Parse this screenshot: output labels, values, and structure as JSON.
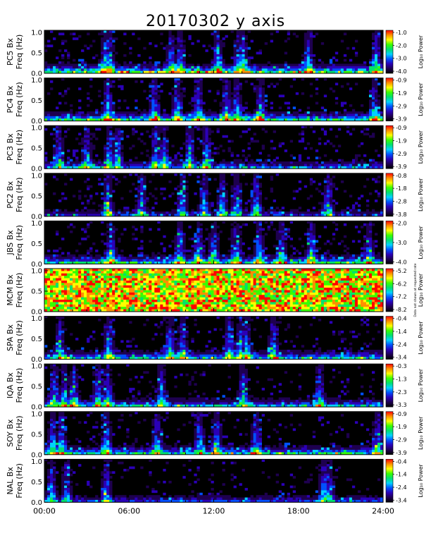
{
  "title": "20170302 y axis",
  "chart_data": {
    "type": "heatmap",
    "title": "20170302 y axis",
    "x_ticks": [
      "00:00",
      "06:00",
      "12:00",
      "18:00",
      "24:00"
    ],
    "xlim": [
      "00:00",
      "24:00"
    ],
    "ylabel_freq": "Freq (Hz)",
    "y_ticks": [
      "0.0",
      "0.5",
      "1.0"
    ],
    "ylim": [
      0.0,
      1.0
    ],
    "colorbar_label": "Log₁₀ Power",
    "colormap": [
      "#000000",
      "#1e0050",
      "#2b00b8",
      "#0050ff",
      "#00d2ff",
      "#00e070",
      "#38ff00",
      "#ffff00",
      "#ff9000",
      "#ff0000"
    ],
    "panels": [
      {
        "station": "PC5 Bx",
        "cbar_ticks": [
          "-1.0",
          "-2.0",
          "-3.0",
          "-4.0"
        ],
        "activity": 0.55,
        "baseline": 0.9,
        "bursts": [
          4.3,
          4.6,
          9.0,
          9.6,
          12.3,
          13.8,
          14.1,
          18.7,
          23.5
        ]
      },
      {
        "station": "PC4 Bx",
        "cbar_ticks": [
          "-0.9",
          "-1.9",
          "-2.9",
          "-3.9"
        ],
        "activity": 0.5,
        "baseline": 0.8,
        "bursts": [
          4.5,
          7.8,
          9.4,
          10.9,
          12.9,
          13.6,
          15.3,
          23.4
        ]
      },
      {
        "station": "PC3 Bx",
        "cbar_ticks": [
          "-0.9",
          "-1.9",
          "-2.9",
          "-3.9"
        ],
        "activity": 0.75,
        "baseline": 0.55,
        "bursts": [
          1.0,
          3.0,
          4.6,
          5.2,
          7.9,
          8.5,
          10.3,
          11.5
        ]
      },
      {
        "station": "PC2 Bx",
        "cbar_ticks": [
          "-0.8",
          "-1.8",
          "-2.8",
          "-3.8"
        ],
        "activity": 0.65,
        "baseline": 0.4,
        "bursts": [
          4.5,
          6.9,
          9.8,
          11.3,
          12.6,
          13.6,
          15.0,
          20.1
        ]
      },
      {
        "station": "JBS Bx",
        "cbar_ticks": [
          "-2.0",
          "-3.0",
          "-4.0"
        ],
        "activity": 0.7,
        "baseline": 0.75,
        "bursts": [
          4.7,
          9.6,
          10.9,
          12.0,
          13.6,
          15.2,
          16.8,
          18.9,
          23.0
        ]
      },
      {
        "station": "MCM Bx",
        "cbar_ticks": [
          "-5.2",
          "-6.2",
          "-7.2",
          "-8.2"
        ],
        "activity": 1.0,
        "baseline": 0.0,
        "bursts": [],
        "note": "Data not shown at requested rate"
      },
      {
        "station": "SPA Bx",
        "cbar_ticks": [
          "-0.4",
          "-1.4",
          "-2.4",
          "-3.4"
        ],
        "activity": 0.55,
        "baseline": 0.7,
        "bursts": [
          1.1,
          4.6,
          8.9,
          9.8,
          13.1,
          13.9,
          14.3,
          16.2
        ]
      },
      {
        "station": "IQA Bx",
        "cbar_ticks": [
          "-0.3",
          "-1.3",
          "-2.3",
          "-3.3"
        ],
        "activity": 0.45,
        "baseline": 0.65,
        "bursts": [
          0.7,
          1.4,
          2.1,
          3.8,
          4.5,
          8.3,
          14.1,
          19.5
        ]
      },
      {
        "station": "SOY Bx",
        "cbar_ticks": [
          "-0.9",
          "-1.9",
          "-2.9",
          "-3.9"
        ],
        "activity": 0.5,
        "baseline": 0.75,
        "bursts": [
          0.6,
          1.2,
          4.4,
          8.0,
          11.0,
          12.2,
          15.0,
          23.6
        ]
      },
      {
        "station": "NAL Bx",
        "cbar_ticks": [
          "-0.4",
          "-1.4",
          "-2.4",
          "-3.4"
        ],
        "activity": 0.3,
        "baseline": 0.45,
        "bursts": [
          0.5,
          1.6,
          4.4,
          19.8,
          20.2
        ]
      }
    ]
  }
}
